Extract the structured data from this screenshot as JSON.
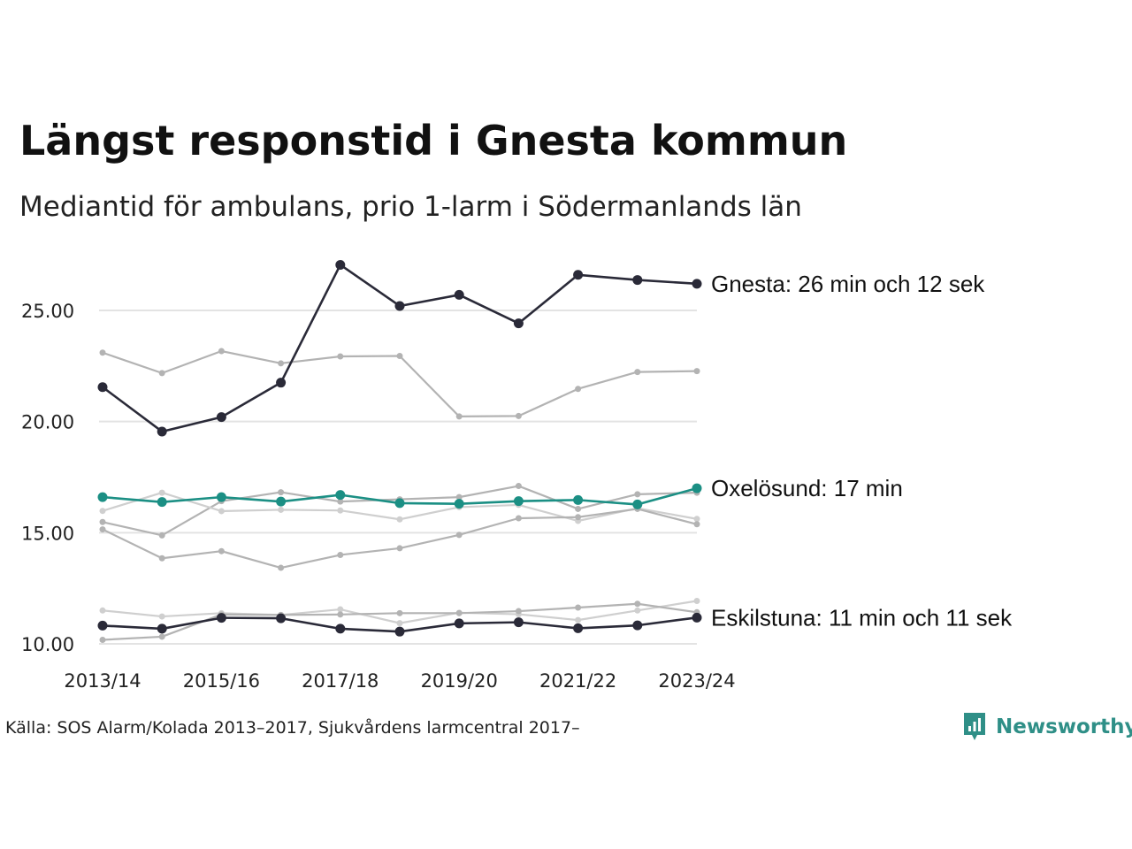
{
  "title": "Längst responstid i Gnesta kommun",
  "subtitle": "Mediantid för ambulans, prio 1-larm i Södermanlands län",
  "source": "Källa: SOS Alarm/Kolada 2013–2017, Sjukvårdens larmcentral 2017–",
  "brand": {
    "name": "Newsworthy",
    "icon": "newsworthy-logo-icon",
    "color": "#2f8f87"
  },
  "colors": {
    "highlight_dark": "#2a2a38",
    "highlight_teal": "#1b8f84",
    "background_lines": "#b3b3b3",
    "background_lines_light": "#cfcfcf",
    "grid": "#e3e3e3"
  },
  "chart_data": {
    "type": "line",
    "title": "Längst responstid i Gnesta kommun",
    "subtitle": "Mediantid för ambulans, prio 1-larm i Södermanlands län",
    "x_tick_labels": [
      "2013/14",
      "2015/16",
      "2017/18",
      "2019/20",
      "2021/22",
      "2023/24"
    ],
    "y_tick_labels": [
      "10.00",
      "15.00",
      "20.00",
      "25.00"
    ],
    "ylim": [
      9.8,
      27.5
    ],
    "grid": "horizontal",
    "x": [
      2013,
      2014,
      2015,
      2016,
      2017,
      2018,
      2019,
      2020,
      2021,
      2022,
      2023
    ],
    "series": [
      {
        "name": "Gnesta",
        "label": "Gnesta: 26 min och 12 sek",
        "highlight": true,
        "color": "#2a2a38",
        "values": [
          21.55,
          19.55,
          20.2,
          21.75,
          27.05,
          25.2,
          25.7,
          24.42,
          26.6,
          26.37,
          26.2
        ]
      },
      {
        "name": "Oxelösund",
        "label": "Oxelösund: 17 min",
        "highlight": true,
        "color": "#1b8f84",
        "values": [
          16.6,
          16.38,
          16.6,
          16.4,
          16.7,
          16.33,
          16.3,
          16.42,
          16.47,
          16.27,
          17.0
        ]
      },
      {
        "name": "Eskilstuna",
        "label": "Eskilstuna: 11 min och 11 sek",
        "highlight": true,
        "color": "#2a2a38",
        "values": [
          10.82,
          10.68,
          11.17,
          11.15,
          10.68,
          10.55,
          10.92,
          10.97,
          10.7,
          10.83,
          11.18
        ]
      },
      {
        "highlight": false,
        "color": "#b3b3b3",
        "values": [
          23.1,
          22.18,
          23.17,
          22.62,
          22.93,
          22.95,
          20.23,
          20.25,
          21.47,
          22.23,
          22.27
        ]
      },
      {
        "highlight": false,
        "color": "#b3b3b3",
        "values": [
          15.48,
          14.88,
          16.42,
          16.82,
          16.4,
          16.5,
          16.6,
          17.1,
          16.07,
          16.73,
          16.8
        ]
      },
      {
        "highlight": false,
        "color": "#cfcfcf",
        "values": [
          15.98,
          16.8,
          15.97,
          16.03,
          16.0,
          15.6,
          16.15,
          16.25,
          15.53,
          16.1,
          15.62
        ]
      },
      {
        "highlight": false,
        "color": "#b3b3b3",
        "values": [
          15.15,
          13.85,
          14.17,
          13.42,
          14.0,
          14.3,
          14.9,
          15.65,
          15.7,
          16.07,
          15.38
        ]
      },
      {
        "highlight": false,
        "color": "#cfcfcf",
        "values": [
          11.5,
          11.23,
          11.38,
          11.3,
          11.55,
          10.93,
          11.4,
          11.33,
          11.07,
          11.5,
          11.93
        ]
      },
      {
        "highlight": false,
        "color": "#b3b3b3",
        "values": [
          10.18,
          10.32,
          11.32,
          11.3,
          11.32,
          11.38,
          11.38,
          11.47,
          11.63,
          11.8,
          11.42
        ]
      }
    ]
  }
}
